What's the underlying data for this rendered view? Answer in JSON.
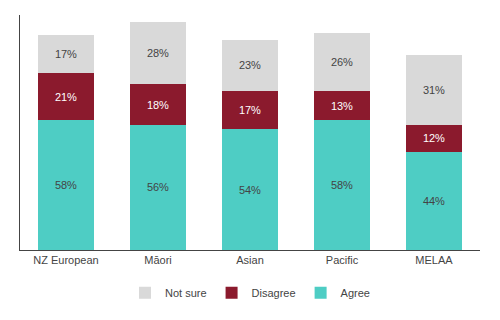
{
  "chart_data": {
    "type": "bar",
    "stacked": true,
    "categories": [
      "NZ European",
      "Māori",
      "Asian",
      "Pacific",
      "MELAA"
    ],
    "series": [
      {
        "name": "Agree",
        "color": "#4ECDC4",
        "values": [
          58,
          56,
          54,
          58,
          44
        ],
        "value_labels": [
          "58%",
          "56%",
          "54%",
          "58%",
          "44%"
        ]
      },
      {
        "name": "Disagree",
        "color": "#8B1A2D",
        "values": [
          21,
          18,
          17,
          13,
          12
        ],
        "value_labels": [
          "21%",
          "18%",
          "17%",
          "13%",
          "12%"
        ]
      },
      {
        "name": "Not sure",
        "color": "#D9D9D9",
        "values": [
          17,
          28,
          23,
          26,
          31
        ],
        "value_labels": [
          "17%",
          "28%",
          "23%",
          "26%",
          "31%"
        ]
      }
    ],
    "ylim": [
      0,
      105
    ],
    "tick_labels": "x",
    "data_labels": true,
    "grid": false,
    "legend": "bottom"
  }
}
